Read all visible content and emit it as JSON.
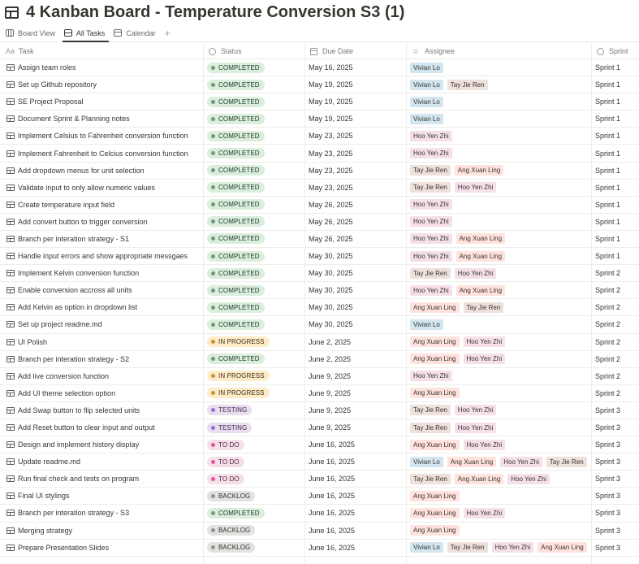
{
  "page": {
    "title": "4 Kanban Board - Temperature Conversion S3 (1)"
  },
  "tabs": [
    {
      "label": "Board View",
      "icon": "board-icon"
    },
    {
      "label": "All Tasks",
      "icon": "table-icon",
      "active": true
    },
    {
      "label": "Calendar",
      "icon": "calendar-icon"
    }
  ],
  "tab_add": "+",
  "columns": {
    "task": {
      "label": "Task",
      "icon": "Aa"
    },
    "status": {
      "label": "Status"
    },
    "due": {
      "label": "Due Date"
    },
    "assignee": {
      "label": "Assignee"
    },
    "sprint": {
      "label": "Sprint"
    }
  },
  "status_styles": {
    "COMPLETED": {
      "bg": "#dbeddb",
      "dot": "#6c9b7d",
      "text": "#1c3829"
    },
    "IN PROGRESS": {
      "bg": "#fdecc8",
      "dot": "#cb912f",
      "text": "#402c1b"
    },
    "TESTING": {
      "bg": "#e8deee",
      "dot": "#9a6dd7",
      "text": "#412454"
    },
    "TO DO": {
      "bg": "#f5e0e9",
      "dot": "#e255a1",
      "text": "#4c2337"
    },
    "BACKLOG": {
      "bg": "#e3e2e0",
      "dot": "#91918e",
      "text": "#32302c"
    }
  },
  "people_colors": {
    "Vivian Lo": "#d3e5ef",
    "Tay Jie Ren": "#eee0da",
    "Hoo Yen Zhi": "#f5e0e9",
    "Ang Xuan Ling": "#ffe2dd"
  },
  "tasks": [
    {
      "task": "Assign team roles",
      "status": "COMPLETED",
      "due": "May 16, 2025",
      "assignees": [
        "Vivian Lo"
      ],
      "sprint": "Sprint 1"
    },
    {
      "task": "Set up Github repository",
      "status": "COMPLETED",
      "due": "May 19, 2025",
      "assignees": [
        "Vivian Lo",
        "Tay Jie Ren"
      ],
      "sprint": "Sprint 1"
    },
    {
      "task": "SE Project Proposal",
      "status": "COMPLETED",
      "due": "May 19, 2025",
      "assignees": [
        "Vivian Lo"
      ],
      "sprint": "Sprint 1"
    },
    {
      "task": "Document Sprint & Planning notes",
      "status": "COMPLETED",
      "due": "May 19, 2025",
      "assignees": [
        "Vivian Lo"
      ],
      "sprint": "Sprint 1"
    },
    {
      "task": "Implement Celsius to Fahrenheit conversion function",
      "status": "COMPLETED",
      "due": "May 23, 2025",
      "assignees": [
        "Hoo Yen Zhi"
      ],
      "sprint": "Sprint 1"
    },
    {
      "task": "Implement Fahrenheit to Celcius conversion function",
      "status": "COMPLETED",
      "due": "May 23, 2025",
      "assignees": [
        "Hoo Yen Zhi"
      ],
      "sprint": "Sprint 1"
    },
    {
      "task": "Add dropdown menus for unit selection",
      "status": "COMPLETED",
      "due": "May 23, 2025",
      "assignees": [
        "Tay Jie Ren",
        "Ang Xuan Ling"
      ],
      "sprint": "Sprint 1"
    },
    {
      "task": "Validate input to only allow numeric values",
      "status": "COMPLETED",
      "due": "May 23, 2025",
      "assignees": [
        "Tay Jie Ren",
        "Hoo Yen Zhi"
      ],
      "sprint": "Sprint 1"
    },
    {
      "task": "Create temperature input field",
      "status": "COMPLETED",
      "due": "May 26, 2025",
      "assignees": [
        "Hoo Yen Zhi"
      ],
      "sprint": "Sprint 1"
    },
    {
      "task": "Add convert button to trigger conversion",
      "status": "COMPLETED",
      "due": "May 26, 2025",
      "assignees": [
        "Hoo Yen Zhi"
      ],
      "sprint": "Sprint 1"
    },
    {
      "task": "Branch per interation strategy - S1",
      "status": "COMPLETED",
      "due": "May 26, 2025",
      "assignees": [
        "Hoo Yen Zhi",
        "Ang Xuan Ling"
      ],
      "sprint": "Sprint 1"
    },
    {
      "task": "Handle input errors and show appropriate messgaes",
      "status": "COMPLETED",
      "due": "May 30, 2025",
      "assignees": [
        "Hoo Yen Zhi",
        "Ang Xuan Ling"
      ],
      "sprint": "Sprint 1"
    },
    {
      "task": "Implement Kelvin conversion function",
      "status": "COMPLETED",
      "due": "May 30, 2025",
      "assignees": [
        "Tay Jie Ren",
        "Hoo Yen Zhi"
      ],
      "sprint": "Sprint 2"
    },
    {
      "task": "Enable conversion accross all units",
      "status": "COMPLETED",
      "due": "May 30, 2025",
      "assignees": [
        "Hoo Yen Zhi",
        "Ang Xuan Ling"
      ],
      "sprint": "Sprint 2"
    },
    {
      "task": "Add Kelvin as option in dropdown list",
      "status": "COMPLETED",
      "due": "May 30, 2025",
      "assignees": [
        "Ang Xuan Ling",
        "Tay Jie Ren"
      ],
      "sprint": "Sprint 2"
    },
    {
      "task": "Set up project readme.md",
      "status": "COMPLETED",
      "due": "May 30, 2025",
      "assignees": [
        "Vivian Lo"
      ],
      "sprint": "Sprint 2"
    },
    {
      "task": "UI Polish",
      "status": "IN PROGRESS",
      "due": "June 2, 2025",
      "assignees": [
        "Ang Xuan Ling",
        "Hoo Yen Zhi"
      ],
      "sprint": "Sprint 2"
    },
    {
      "task": "Branch per interation strategy - S2",
      "status": "COMPLETED",
      "due": "June 2, 2025",
      "assignees": [
        "Ang Xuan Ling",
        "Hoo Yen Zhi"
      ],
      "sprint": "Sprint 2"
    },
    {
      "task": "Add live conversion function",
      "status": "IN PROGRESS",
      "due": "June 9, 2025",
      "assignees": [
        "Hoo Yen Zhi"
      ],
      "sprint": "Sprint 2"
    },
    {
      "task": "Add UI theme selection option",
      "status": "IN PROGRESS",
      "due": "June 9, 2025",
      "assignees": [
        "Ang Xuan Ling"
      ],
      "sprint": "Sprint 2"
    },
    {
      "task": "Add Swap button to flip selected units",
      "status": "TESTING",
      "due": "June 9, 2025",
      "assignees": [
        "Tay Jie Ren",
        "Hoo Yen Zhi"
      ],
      "sprint": "Sprint 3"
    },
    {
      "task": "Add Reset button to clear input and output",
      "status": "TESTING",
      "due": "June 9, 2025",
      "assignees": [
        "Tay Jie Ren",
        "Hoo Yen Zhi"
      ],
      "sprint": "Sprint 3"
    },
    {
      "task": "Design and implement history display",
      "status": "TO DO",
      "due": "June 16, 2025",
      "assignees": [
        "Ang Xuan Ling",
        "Hoo Yen Zhi"
      ],
      "sprint": "Sprint 3"
    },
    {
      "task": "Update readme.md",
      "status": "TO DO",
      "due": "June 16, 2025",
      "assignees": [
        "Vivian Lo",
        "Ang Xuan Ling",
        "Hoo Yen Zhi",
        "Tay Jie Ren"
      ],
      "sprint": "Sprint 3"
    },
    {
      "task": "Run final check and tests on program",
      "status": "TO DO",
      "due": "June 16, 2025",
      "assignees": [
        "Tay Jie Ren",
        "Ang Xuan Ling",
        "Hoo Yen Zhi"
      ],
      "sprint": "Sprint 3"
    },
    {
      "task": "Final UI stylings",
      "status": "BACKLOG",
      "due": "June 16, 2025",
      "assignees": [
        "Ang Xuan Ling"
      ],
      "sprint": "Sprint 3"
    },
    {
      "task": "Branch per interation strategy - S3",
      "status": "COMPLETED",
      "due": "June 16, 2025",
      "assignees": [
        "Ang Xuan Ling",
        "Hoo Yen Zhi"
      ],
      "sprint": "Sprint 3"
    },
    {
      "task": "Merging strategy",
      "status": "BACKLOG",
      "due": "June 16, 2025",
      "assignees": [
        "Ang Xuan Ling"
      ],
      "sprint": "Sprint 3"
    },
    {
      "task": "Prepare Presentation Slides",
      "status": "BACKLOG",
      "due": "June 16, 2025",
      "assignees": [
        "Vivian Lo",
        "Tay Jie Ren",
        "Hoo Yen Zhi",
        "Ang Xuan Ling"
      ],
      "sprint": "Sprint 3"
    }
  ]
}
